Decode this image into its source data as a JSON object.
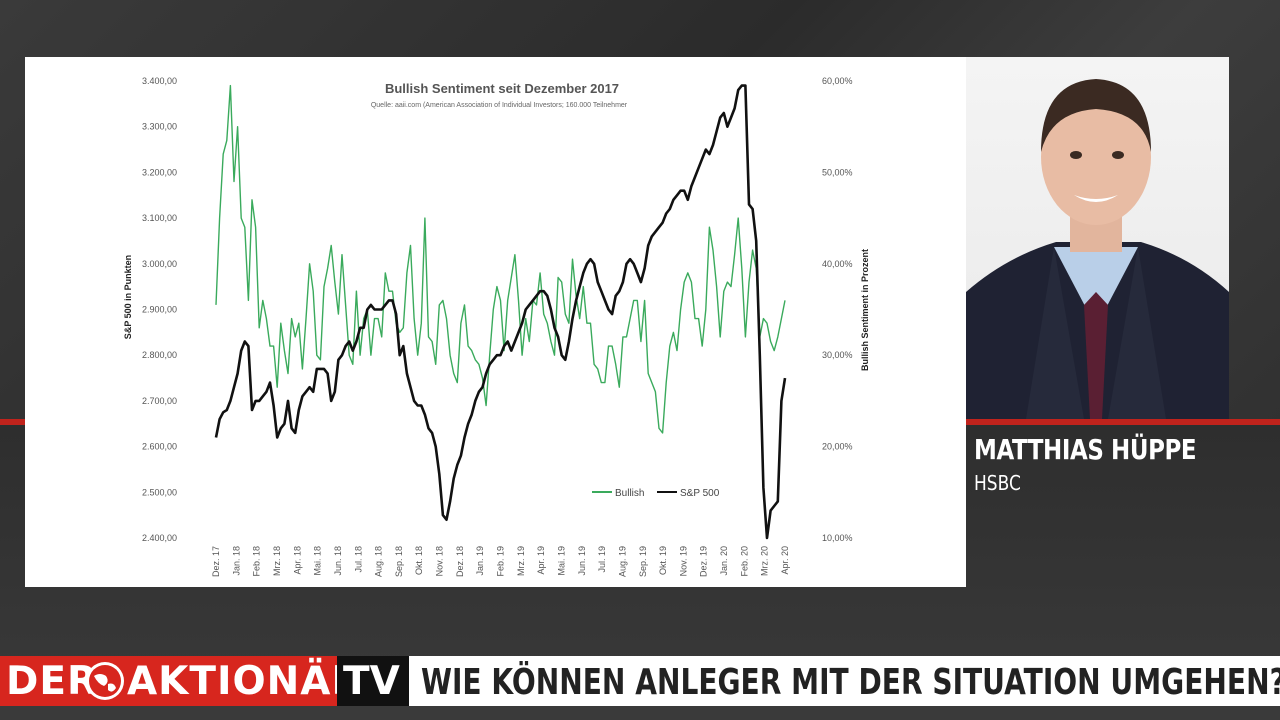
{
  "chart_data": {
    "type": "line",
    "title": "Bullish Sentiment seit Dezember 2017",
    "subtitle": "Quelle: aaii.com (American Association of Individual Investors; 160.000 Teilnehmer",
    "ylabel_left": "S&P 500 in Punkten",
    "ylabel_right": "Bullish Sentiment in Prozent",
    "y_left_ticks": [
      "2.400,00",
      "2.500,00",
      "2.600,00",
      "2.700,00",
      "2.800,00",
      "2.900,00",
      "3.000,00",
      "3.100,00",
      "3.200,00",
      "3.300,00",
      "3.400,00"
    ],
    "y_right_ticks": [
      "10,00%",
      "20,00%",
      "30,00%",
      "40,00%",
      "50,00%",
      "60,00%"
    ],
    "ylim_left": [
      2400,
      3400
    ],
    "ylim_right": [
      10,
      60
    ],
    "x_labels": [
      "Dez. 17",
      "Jan. 18",
      "Feb. 18",
      "Mrz. 18",
      "Apr. 18",
      "Mai. 18",
      "Jun. 18",
      "Jul. 18",
      "Aug. 18",
      "Sep. 18",
      "Okt. 18",
      "Nov. 18",
      "Dez. 18",
      "Jan. 19",
      "Feb. 19",
      "Mrz. 19",
      "Apr. 19",
      "Mai. 19",
      "Jun. 19",
      "Jul. 19",
      "Aug. 19",
      "Sep. 19",
      "Okt. 19",
      "Nov. 19",
      "Dez. 19",
      "Jan. 20",
      "Feb. 20",
      "Mrz. 20",
      "Apr. 20"
    ],
    "legend_placement": "bottom-right",
    "series": [
      {
        "name": "Bullish",
        "axis": "right",
        "color": "#3aaa5c",
        "values": [
          35.5,
          45,
          52,
          53.5,
          59.5,
          49,
          55,
          45,
          44,
          36,
          47,
          44,
          33,
          36,
          34,
          31,
          31,
          26.5,
          33.5,
          30.5,
          28,
          34,
          32,
          33.5,
          28.5,
          34,
          40,
          37,
          30,
          29.5,
          37.5,
          39.5,
          42,
          38,
          34.5,
          41,
          35.5,
          30,
          29,
          37,
          30,
          34,
          35,
          30,
          34,
          34,
          32,
          39,
          37,
          37,
          33.5,
          32.5,
          33,
          39,
          42,
          34,
          30,
          33.5,
          45,
          32,
          31.5,
          29,
          35.5,
          36,
          34,
          30,
          28,
          27,
          33.5,
          35.5,
          31,
          30.5,
          29.5,
          29,
          27.5,
          24.5,
          30,
          35,
          37.5,
          36,
          30.5,
          36,
          38.5,
          41,
          36,
          30,
          34,
          31.5,
          36,
          35.5,
          39,
          34.5,
          33.5,
          31.5,
          30,
          38.5,
          38,
          34.5,
          33.5,
          40.5,
          36.5,
          34,
          37.5,
          33.5,
          33.5,
          29,
          28.5,
          27,
          27,
          31,
          31,
          29,
          26.5,
          32,
          32,
          34,
          36,
          36,
          31.5,
          36,
          28,
          27,
          26,
          22,
          21.5,
          27,
          31,
          32.5,
          30.5,
          35,
          38,
          39,
          38,
          34,
          34,
          31,
          35,
          44,
          41.5,
          37.5,
          32,
          37,
          38,
          37.5,
          41,
          45,
          39.5,
          32,
          38,
          41.5,
          39.5,
          32,
          34,
          33.5,
          31.5,
          30.5,
          32,
          34,
          36
        ]
      },
      {
        "name": "S&P 500",
        "axis": "left",
        "color": "#111111",
        "values": [
          2620,
          2660,
          2675,
          2680,
          2700,
          2730,
          2760,
          2810,
          2830,
          2820,
          2680,
          2700,
          2700,
          2710,
          2720,
          2740,
          2690,
          2620,
          2640,
          2650,
          2700,
          2640,
          2630,
          2680,
          2710,
          2720,
          2730,
          2720,
          2770,
          2770,
          2770,
          2760,
          2700,
          2720,
          2790,
          2800,
          2820,
          2830,
          2810,
          2830,
          2860,
          2860,
          2900,
          2910,
          2900,
          2900,
          2900,
          2910,
          2920,
          2920,
          2890,
          2800,
          2820,
          2760,
          2730,
          2700,
          2690,
          2690,
          2670,
          2640,
          2630,
          2600,
          2540,
          2450,
          2440,
          2480,
          2530,
          2560,
          2580,
          2620,
          2650,
          2670,
          2700,
          2720,
          2730,
          2760,
          2780,
          2790,
          2800,
          2800,
          2820,
          2830,
          2810,
          2830,
          2850,
          2870,
          2900,
          2910,
          2920,
          2930,
          2940,
          2940,
          2930,
          2900,
          2860,
          2840,
          2800,
          2790,
          2830,
          2880,
          2920,
          2950,
          2980,
          3000,
          3010,
          3000,
          2960,
          2940,
          2920,
          2900,
          2890,
          2930,
          2940,
          2960,
          3000,
          3010,
          3000,
          2980,
          2960,
          2990,
          3040,
          3060,
          3070,
          3080,
          3090,
          3110,
          3120,
          3140,
          3150,
          3160,
          3160,
          3140,
          3170,
          3190,
          3210,
          3230,
          3250,
          3240,
          3260,
          3290,
          3320,
          3330,
          3300,
          3320,
          3340,
          3380,
          3390,
          3390,
          3130,
          3120,
          3050,
          2800,
          2510,
          2400,
          2460,
          2470,
          2480,
          2700,
          2750
        ]
      }
    ]
  },
  "speaker": {
    "name": "MATTHIAS HÜPPE",
    "company": "HSBC"
  },
  "lower_third": {
    "logo_left": "DER",
    "logo_right": "AKTIONÄR",
    "tv": "TV",
    "headline": "WIE KÖNNEN ANLEGER MIT DER SITUATION UMGEHEN?"
  },
  "colors": {
    "brand_red": "#d7261e",
    "bullish_green": "#3aaa5c",
    "sp500_black": "#111111"
  }
}
